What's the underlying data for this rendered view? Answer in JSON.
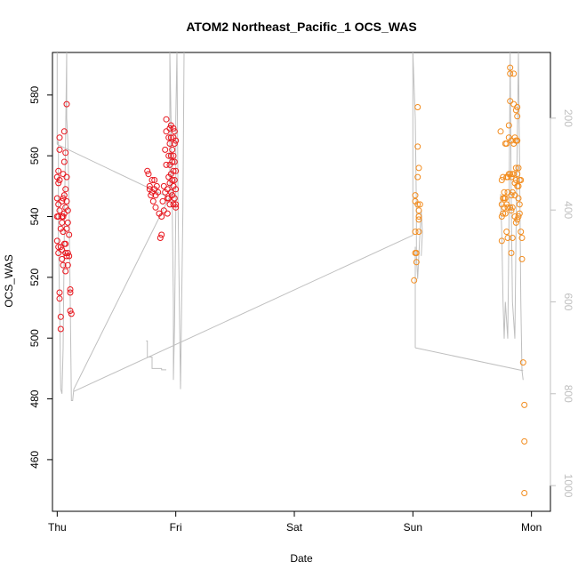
{
  "chart_data": {
    "type": "scatter",
    "title": "ATOM2 Northeast_Pacific_1 OCS_WAS",
    "xlabel": "Date",
    "ylabel": "OCS_WAS",
    "x_unit": "days",
    "x_ticks": [
      {
        "label": "Thu",
        "value": 0
      },
      {
        "label": "Fri",
        "value": 1
      },
      {
        "label": "Sat",
        "value": 2
      },
      {
        "label": "Sun",
        "value": 3
      },
      {
        "label": "Mon",
        "value": 4
      }
    ],
    "xlim": [
      -0.04,
      4.16
    ],
    "ylim": [
      443,
      594
    ],
    "y_ticks": [
      460,
      480,
      500,
      520,
      540,
      560,
      580
    ],
    "y2lim": [
      1056,
      57
    ],
    "y2_ticks": [
      200,
      400,
      600,
      800,
      1000
    ],
    "grid": false,
    "colors": {
      "series_a": "#e8141c",
      "series_b": "#f28c1e",
      "line": "#bfbfbf",
      "axis": "#000000",
      "axis2": "#bfbfbf"
    },
    "series": [
      {
        "color": "#e8141c",
        "points": [
          [
            0.0,
            540
          ],
          [
            0.0,
            553
          ],
          [
            0.0,
            546
          ],
          [
            0.0,
            532
          ],
          [
            0.01,
            555
          ],
          [
            0.01,
            551
          ],
          [
            0.01,
            544
          ],
          [
            0.01,
            540
          ],
          [
            0.01,
            530
          ],
          [
            0.01,
            528
          ],
          [
            0.02,
            566
          ],
          [
            0.02,
            562
          ],
          [
            0.02,
            552
          ],
          [
            0.02,
            542
          ],
          [
            0.02,
            515
          ],
          [
            0.02,
            513
          ],
          [
            0.03,
            507
          ],
          [
            0.03,
            503
          ],
          [
            0.03,
            536
          ],
          [
            0.03,
            530
          ],
          [
            0.04,
            545
          ],
          [
            0.04,
            540
          ],
          [
            0.04,
            538
          ],
          [
            0.04,
            526
          ],
          [
            0.04,
            529
          ],
          [
            0.05,
            554
          ],
          [
            0.05,
            546
          ],
          [
            0.05,
            540
          ],
          [
            0.05,
            535
          ],
          [
            0.05,
            524
          ],
          [
            0.06,
            568
          ],
          [
            0.06,
            558
          ],
          [
            0.06,
            547
          ],
          [
            0.06,
            541
          ],
          [
            0.06,
            531
          ],
          [
            0.07,
            561
          ],
          [
            0.07,
            549
          ],
          [
            0.07,
            543
          ],
          [
            0.07,
            528
          ],
          [
            0.07,
            522
          ],
          [
            0.07,
            531
          ],
          [
            0.08,
            577
          ],
          [
            0.08,
            553
          ],
          [
            0.08,
            545
          ],
          [
            0.08,
            536
          ],
          [
            0.08,
            527
          ],
          [
            0.09,
            542
          ],
          [
            0.09,
            538
          ],
          [
            0.09,
            528
          ],
          [
            0.09,
            524
          ],
          [
            0.1,
            534
          ],
          [
            0.1,
            527
          ],
          [
            0.11,
            516
          ],
          [
            0.11,
            515
          ],
          [
            0.11,
            509
          ],
          [
            0.12,
            508
          ],
          [
            0.76,
            555
          ],
          [
            0.77,
            554
          ],
          [
            0.78,
            550
          ],
          [
            0.78,
            549
          ],
          [
            0.79,
            547
          ],
          [
            0.8,
            552
          ],
          [
            0.8,
            548
          ],
          [
            0.81,
            545
          ],
          [
            0.82,
            552
          ],
          [
            0.82,
            549
          ],
          [
            0.83,
            547
          ],
          [
            0.83,
            543
          ],
          [
            0.84,
            550
          ],
          [
            0.85,
            548
          ],
          [
            0.86,
            541
          ],
          [
            0.87,
            533
          ],
          [
            0.88,
            534
          ],
          [
            0.88,
            540
          ],
          [
            0.89,
            545
          ],
          [
            0.9,
            542
          ],
          [
            0.9,
            550
          ],
          [
            0.91,
            548
          ],
          [
            0.91,
            562
          ],
          [
            0.92,
            568
          ],
          [
            0.92,
            572
          ],
          [
            0.92,
            557
          ],
          [
            0.93,
            549
          ],
          [
            0.93,
            546
          ],
          [
            0.93,
            541
          ],
          [
            0.94,
            566
          ],
          [
            0.94,
            560
          ],
          [
            0.94,
            553
          ],
          [
            0.94,
            546
          ],
          [
            0.95,
            569
          ],
          [
            0.95,
            564
          ],
          [
            0.95,
            557
          ],
          [
            0.95,
            551
          ],
          [
            0.95,
            544
          ],
          [
            0.96,
            570
          ],
          [
            0.96,
            566
          ],
          [
            0.96,
            560
          ],
          [
            0.96,
            554
          ],
          [
            0.96,
            548
          ],
          [
            0.97,
            562
          ],
          [
            0.97,
            558
          ],
          [
            0.97,
            552
          ],
          [
            0.97,
            547
          ],
          [
            0.98,
            569
          ],
          [
            0.98,
            566
          ],
          [
            0.98,
            560
          ],
          [
            0.98,
            555
          ],
          [
            0.98,
            550
          ],
          [
            0.98,
            544
          ],
          [
            0.99,
            568
          ],
          [
            0.99,
            564
          ],
          [
            0.99,
            558
          ],
          [
            0.99,
            552
          ],
          [
            0.99,
            546
          ],
          [
            1.0,
            565
          ],
          [
            1.0,
            555
          ],
          [
            1.0,
            549
          ],
          [
            1.0,
            544
          ],
          [
            1.0,
            543
          ]
        ]
      },
      {
        "color": "#f28c1e",
        "points": [
          [
            3.01,
            519
          ],
          [
            3.02,
            547
          ],
          [
            3.02,
            545
          ],
          [
            3.02,
            535
          ],
          [
            3.02,
            528
          ],
          [
            3.03,
            528
          ],
          [
            3.03,
            525
          ],
          [
            3.04,
            576
          ],
          [
            3.04,
            563
          ],
          [
            3.04,
            553
          ],
          [
            3.04,
            544
          ],
          [
            3.05,
            556
          ],
          [
            3.05,
            542
          ],
          [
            3.05,
            539
          ],
          [
            3.05,
            535
          ],
          [
            3.05,
            540
          ],
          [
            3.06,
            544
          ],
          [
            3.74,
            568
          ],
          [
            3.75,
            552
          ],
          [
            3.75,
            544
          ],
          [
            3.75,
            540
          ],
          [
            3.75,
            532
          ],
          [
            3.76,
            553
          ],
          [
            3.76,
            546
          ],
          [
            3.76,
            541
          ],
          [
            3.77,
            548
          ],
          [
            3.77,
            543
          ],
          [
            3.77,
            546
          ],
          [
            3.78,
            564
          ],
          [
            3.78,
            546
          ],
          [
            3.78,
            541
          ],
          [
            3.79,
            564
          ],
          [
            3.79,
            553
          ],
          [
            3.79,
            544
          ],
          [
            3.79,
            535
          ],
          [
            3.8,
            553
          ],
          [
            3.8,
            548
          ],
          [
            3.8,
            543
          ],
          [
            3.8,
            533
          ],
          [
            3.81,
            570
          ],
          [
            3.81,
            566
          ],
          [
            3.81,
            554
          ],
          [
            3.82,
            589
          ],
          [
            3.82,
            587
          ],
          [
            3.82,
            578
          ],
          [
            3.82,
            554
          ],
          [
            3.82,
            543
          ],
          [
            3.83,
            565
          ],
          [
            3.83,
            553
          ],
          [
            3.83,
            547
          ],
          [
            3.83,
            542
          ],
          [
            3.83,
            528
          ],
          [
            3.84,
            554
          ],
          [
            3.84,
            548
          ],
          [
            3.84,
            543
          ],
          [
            3.84,
            533
          ],
          [
            3.85,
            587
          ],
          [
            3.85,
            577
          ],
          [
            3.85,
            564
          ],
          [
            3.85,
            554
          ],
          [
            3.86,
            566
          ],
          [
            3.86,
            551
          ],
          [
            3.86,
            547
          ],
          [
            3.86,
            540
          ],
          [
            3.87,
            575
          ],
          [
            3.87,
            565
          ],
          [
            3.87,
            556
          ],
          [
            3.87,
            552
          ],
          [
            3.87,
            538
          ],
          [
            3.88,
            576
          ],
          [
            3.88,
            573
          ],
          [
            3.88,
            565
          ],
          [
            3.88,
            554
          ],
          [
            3.88,
            550
          ],
          [
            3.88,
            539
          ],
          [
            3.89,
            556
          ],
          [
            3.89,
            550
          ],
          [
            3.89,
            546
          ],
          [
            3.89,
            540
          ],
          [
            3.9,
            552
          ],
          [
            3.9,
            544
          ],
          [
            3.9,
            541
          ],
          [
            3.91,
            552
          ],
          [
            3.91,
            535
          ],
          [
            3.92,
            526
          ],
          [
            3.92,
            533
          ],
          [
            3.93,
            492
          ],
          [
            3.94,
            478
          ],
          [
            3.94,
            466
          ],
          [
            3.94,
            449
          ]
        ]
      }
    ],
    "secondary_line": {
      "color": "#bfbfbf",
      "points": [
        [
          0.0,
          57
        ],
        [
          0.0,
          250
        ],
        [
          0.0,
          257
        ],
        [
          0.01,
          250
        ],
        [
          0.01,
          450
        ],
        [
          0.02,
          600
        ],
        [
          0.03,
          790
        ],
        [
          0.04,
          800
        ],
        [
          0.05,
          700
        ],
        [
          0.06,
          450
        ],
        [
          0.07,
          250
        ],
        [
          0.08,
          57
        ],
        [
          0.08,
          200
        ],
        [
          0.09,
          250
        ],
        [
          0.1,
          400
        ],
        [
          0.11,
          600
        ],
        [
          0.12,
          815
        ],
        [
          0.13,
          815
        ],
        [
          0.14,
          790
        ],
        [
          0.95,
          370
        ],
        [
          0.95,
          57
        ],
        [
          0.96,
          200
        ],
        [
          0.97,
          400
        ],
        [
          0.98,
          600
        ],
        [
          0.98,
          770
        ],
        [
          0.99,
          650
        ],
        [
          1.0,
          400
        ],
        [
          1.0,
          200
        ],
        [
          1.01,
          57
        ],
        [
          1.02,
          400
        ],
        [
          1.03,
          600
        ],
        [
          1.04,
          790
        ],
        [
          1.05,
          600
        ],
        [
          1.06,
          400
        ],
        [
          1.07,
          57
        ]
      ]
    },
    "secondary_segments": [
      [
        [
          0.0,
          257
        ],
        [
          0.92,
          370
        ]
      ],
      [
        [
          0.14,
          795
        ],
        [
          3.0,
          455
        ]
      ],
      [
        [
          3.0,
          455
        ],
        [
          3.0,
          57
        ]
      ],
      [
        [
          3.0,
          57
        ],
        [
          3.02,
          200
        ],
        [
          3.03,
          400
        ],
        [
          3.03,
          500
        ],
        [
          3.04,
          550
        ],
        [
          3.05,
          500
        ],
        [
          3.06,
          450
        ],
        [
          3.07,
          400
        ],
        [
          3.08,
          450
        ],
        [
          3.07,
          500
        ]
      ],
      [
        [
          3.02,
          480
        ],
        [
          3.02,
          700
        ]
      ],
      [
        [
          3.02,
          700
        ],
        [
          3.93,
          750
        ]
      ],
      [
        [
          3.74,
          380
        ],
        [
          3.75,
          450
        ],
        [
          3.76,
          600
        ],
        [
          3.77,
          680
        ],
        [
          3.78,
          600
        ],
        [
          3.8,
          680
        ],
        [
          3.81,
          450
        ],
        [
          3.82,
          57
        ],
        [
          3.83,
          400
        ],
        [
          3.84,
          600
        ],
        [
          3.86,
          680
        ],
        [
          3.87,
          450
        ],
        [
          3.88,
          250
        ],
        [
          3.89,
          57
        ],
        [
          3.9,
          300
        ],
        [
          3.91,
          600
        ],
        [
          3.92,
          750
        ],
        [
          3.93,
          770
        ]
      ],
      [
        [
          3.74,
          380
        ],
        [
          3.74,
          365
        ]
      ],
      [
        [
          0.75,
          685
        ],
        [
          0.76,
          685
        ],
        [
          0.76,
          720
        ],
        [
          0.8,
          720
        ],
        [
          0.8,
          745
        ],
        [
          0.88,
          745
        ],
        [
          0.88,
          748
        ],
        [
          0.92,
          748
        ]
      ]
    ]
  }
}
